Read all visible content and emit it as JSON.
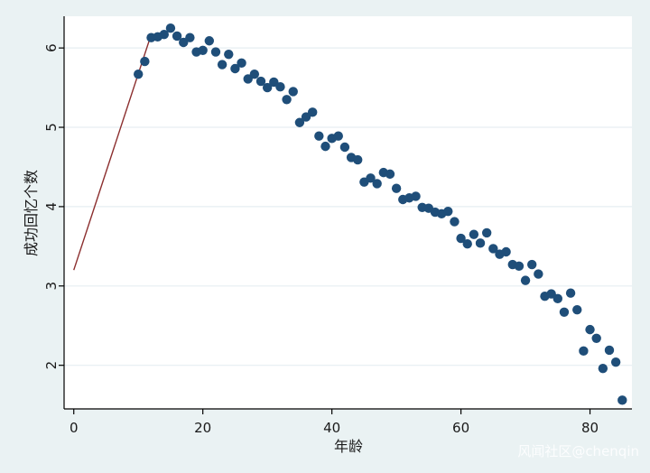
{
  "chart_data": {
    "type": "scatter",
    "title": "",
    "xlabel": "年龄",
    "ylabel": "成功回忆个数",
    "xlim": [
      -1.5,
      86.5
    ],
    "ylim": [
      1.45,
      6.4
    ],
    "xticks": [
      0,
      20,
      40,
      60,
      80
    ],
    "yticks": [
      2,
      3,
      4,
      5,
      6
    ],
    "grid": true,
    "points": {
      "x": [
        10,
        11,
        12,
        13,
        14,
        15,
        16,
        17,
        18,
        19,
        20,
        21,
        22,
        23,
        24,
        25,
        26,
        27,
        28,
        29,
        30,
        31,
        32,
        33,
        34,
        35,
        36,
        37,
        38,
        39,
        40,
        41,
        42,
        43,
        44,
        45,
        46,
        47,
        48,
        49,
        50,
        51,
        52,
        53,
        54,
        55,
        56,
        57,
        58,
        59,
        60,
        61,
        62,
        63,
        64,
        65,
        66,
        67,
        68,
        69,
        70,
        71,
        72,
        73,
        74,
        75,
        76,
        77,
        78,
        79,
        80,
        81,
        82,
        83,
        84,
        85
      ],
      "y": [
        5.67,
        5.83,
        6.13,
        6.14,
        6.17,
        6.25,
        6.15,
        6.07,
        6.13,
        5.95,
        5.97,
        6.09,
        5.95,
        5.79,
        5.92,
        5.74,
        5.81,
        5.61,
        5.67,
        5.58,
        5.5,
        5.57,
        5.51,
        5.35,
        5.45,
        5.06,
        5.13,
        5.19,
        4.89,
        4.76,
        4.86,
        4.89,
        4.75,
        4.62,
        4.59,
        4.31,
        4.36,
        4.29,
        4.43,
        4.41,
        4.23,
        4.09,
        4.11,
        4.13,
        3.99,
        3.98,
        3.93,
        3.91,
        3.94,
        3.81,
        3.6,
        3.53,
        3.65,
        3.54,
        3.67,
        3.47,
        3.4,
        3.43,
        3.27,
        3.25,
        3.07,
        3.27,
        3.15,
        2.87,
        2.9,
        2.84,
        2.67,
        2.91,
        2.7,
        2.18,
        2.45,
        2.34,
        1.96,
        2.19,
        2.04,
        1.56
      ],
      "color": "#1f4e79"
    },
    "line": {
      "x": [
        0,
        12
      ],
      "y": [
        3.2,
        6.17
      ],
      "color": "#8b2e2e"
    }
  },
  "watermark": "风闻社区@chenqin"
}
